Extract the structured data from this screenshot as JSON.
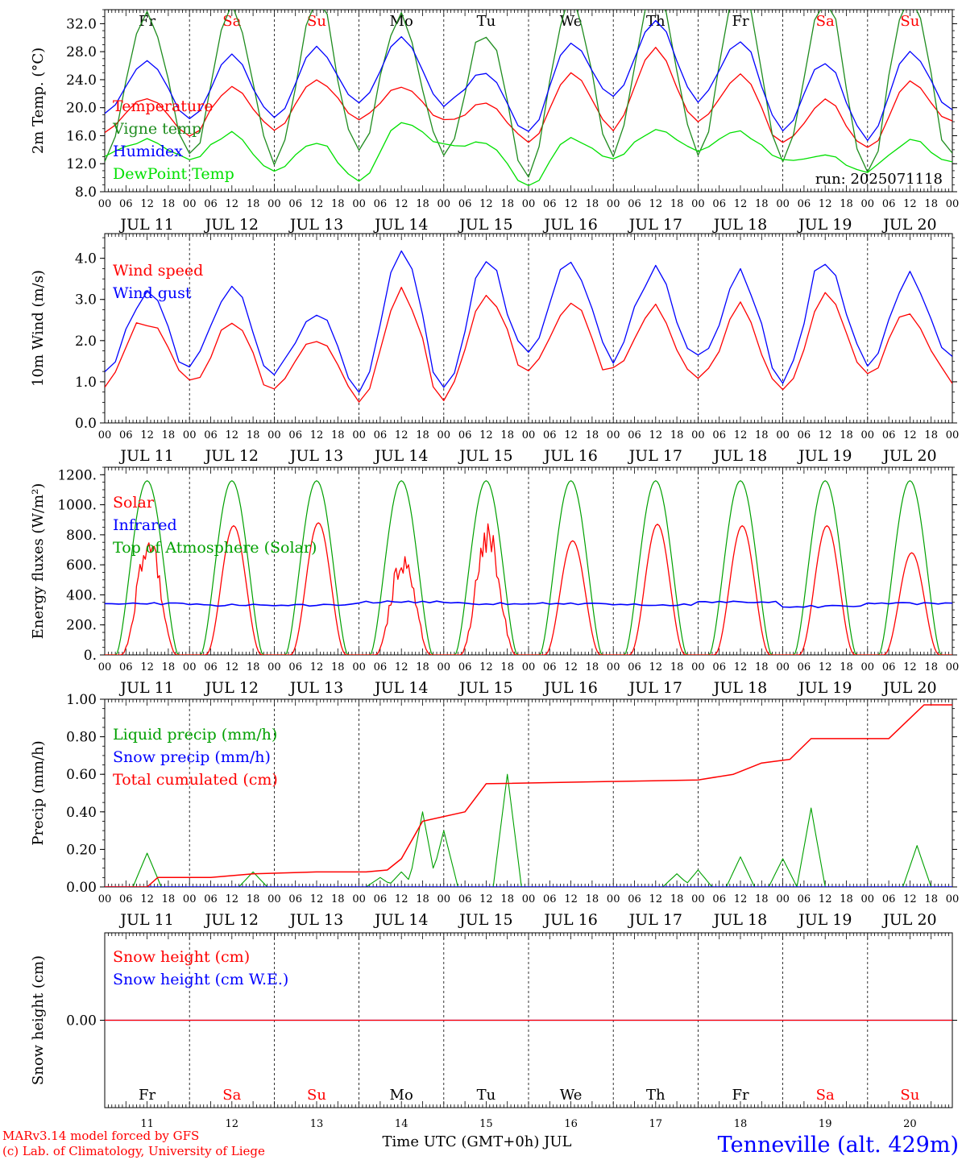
{
  "colors": {
    "red": "#ff0000",
    "green": "#00a000",
    "dark_green": "#1e8c1e",
    "blue": "#0000ff",
    "light_green": "#00e000",
    "axis": "#000000"
  },
  "days": [
    {
      "dow": "Fr",
      "weekend": false,
      "month_label": "JUL 11",
      "num": "11"
    },
    {
      "dow": "Sa",
      "weekend": true,
      "month_label": "JUL 12",
      "num": "12"
    },
    {
      "dow": "Su",
      "weekend": true,
      "month_label": "JUL 13",
      "num": "13"
    },
    {
      "dow": "Mo",
      "weekend": false,
      "month_label": "JUL 14",
      "num": "14"
    },
    {
      "dow": "Tu",
      "weekend": false,
      "month_label": "JUL 15",
      "num": "15"
    },
    {
      "dow": "We",
      "weekend": false,
      "month_label": "JUL 16",
      "num": "16"
    },
    {
      "dow": "Th",
      "weekend": false,
      "month_label": "JUL 17",
      "num": "17"
    },
    {
      "dow": "Fr",
      "weekend": false,
      "month_label": "JUL 18",
      "num": "18"
    },
    {
      "dow": "Sa",
      "weekend": true,
      "month_label": "JUL 19",
      "num": "19"
    },
    {
      "dow": "Su",
      "weekend": true,
      "month_label": "JUL 20",
      "num": "20"
    }
  ],
  "hour_ticks": [
    "00",
    "06",
    "12",
    "18"
  ],
  "footer": {
    "model": "MARv3.14 model forced by GFS",
    "credit": "(c) Lab. of Climatology, University of Liege",
    "xlabel": "Time UTC (GMT+0h) JUL",
    "station": "Tenneville (alt. 429m)"
  },
  "chart_data": [
    {
      "type": "line",
      "ylabel": "2m Temp. (°C)",
      "ylim": [
        8,
        34
      ],
      "yticks": [
        "8.0",
        "12.0",
        "16.0",
        "20.0",
        "24.0",
        "28.0",
        "32.0"
      ],
      "run_label": "run: 2025071118",
      "x_hours": [
        0,
        12,
        24,
        36,
        48,
        60,
        72,
        84,
        96,
        108,
        120,
        132,
        144,
        156,
        168,
        180,
        192,
        204,
        216,
        228,
        240
      ],
      "series": [
        {
          "name": "Temperature",
          "color": "red",
          "values": [
            16.8,
            21.5,
            16.2,
            22.7,
            17.0,
            24.2,
            18.5,
            23.2,
            18.0,
            20.5,
            15.2,
            24.8,
            17.0,
            28.3,
            18.0,
            24.5,
            15.0,
            21.0,
            14.0,
            23.6,
            18.0
          ]
        },
        {
          "name": "Vigne temp",
          "color": "dark_green",
          "values": [
            13.0,
            33.5,
            12.5,
            34.5,
            12.0,
            35.5,
            14.0,
            33.0,
            13.5,
            31.0,
            10.5,
            36.0,
            14.0,
            38.0,
            14.0,
            37.0,
            12.0,
            36.0,
            11.0,
            36.0,
            12.5
          ]
        },
        {
          "name": "Humidex",
          "color": "blue",
          "values": [
            19.5,
            26.5,
            18.5,
            27.5,
            18.5,
            28.5,
            20.5,
            29.8,
            20.5,
            25.0,
            16.5,
            29.5,
            21.5,
            32.5,
            21.0,
            29.5,
            17.0,
            26.5,
            15.5,
            28.0,
            19.5
          ]
        },
        {
          "name": "DewPoint Temp",
          "color": "light_green",
          "values": [
            13.2,
            15.5,
            12.8,
            16.3,
            11.0,
            15.0,
            9.5,
            18.0,
            14.5,
            15.0,
            9.0,
            15.5,
            12.5,
            17.0,
            14.0,
            16.5,
            12.5,
            13.0,
            11.0,
            15.2,
            12.5
          ]
        }
      ]
    },
    {
      "type": "line",
      "ylabel": "10m Wind (m/s)",
      "ylim": [
        0,
        4.6
      ],
      "yticks": [
        "0.0",
        "1.0",
        "2.0",
        "3.0",
        "4.0"
      ],
      "x_hours": [
        0,
        12,
        24,
        36,
        48,
        60,
        72,
        84,
        96,
        108,
        120,
        132,
        144,
        156,
        168,
        180,
        192,
        204,
        216,
        228,
        240
      ],
      "series": [
        {
          "name": "Wind speed",
          "color": "red",
          "values": [
            1.0,
            2.5,
            1.0,
            2.5,
            0.8,
            2.0,
            0.5,
            3.3,
            0.5,
            3.0,
            1.2,
            2.8,
            1.2,
            2.8,
            1.0,
            2.8,
            0.8,
            3.1,
            1.1,
            2.7,
            1.1
          ]
        },
        {
          "name": "Wind gust",
          "color": "blue",
          "values": [
            1.3,
            3.2,
            1.3,
            3.3,
            1.2,
            2.7,
            0.8,
            4.3,
            0.7,
            3.9,
            1.6,
            3.9,
            1.6,
            3.7,
            1.5,
            3.6,
            1.0,
            4.0,
            1.4,
            3.6,
            1.5
          ]
        }
      ]
    },
    {
      "type": "line",
      "ylabel": "Energy fluxes (W/m²)",
      "ylim": [
        0,
        1250
      ],
      "yticks": [
        "0.",
        "200.",
        "400.",
        "600.",
        "800.",
        "1000.",
        "1200."
      ],
      "series": [
        {
          "name": "Solar",
          "color": "red",
          "daily_peak": [
            820,
            860,
            880,
            720,
            880,
            760,
            870,
            860,
            860,
            680
          ]
        },
        {
          "name": "Infrared",
          "color": "blue",
          "daily_mean": [
            350,
            340,
            340,
            360,
            350,
            350,
            340,
            360,
            330,
            350
          ]
        },
        {
          "name": "Top of Atmosphere (Solar)",
          "color": "green",
          "daily_peak": [
            1160,
            1160,
            1160,
            1160,
            1160,
            1160,
            1160,
            1160,
            1160,
            1160
          ]
        }
      ]
    },
    {
      "type": "line",
      "ylabel": "Precip (mm/h)",
      "ylim": [
        0,
        1.0
      ],
      "yticks": [
        "0.00",
        "0.20",
        "0.40",
        "0.60",
        "0.80",
        "1.00"
      ],
      "series": [
        {
          "name": "Liquid precip (mm/h)",
          "color": "green",
          "points": [
            [
              12,
              0.18
            ],
            [
              42,
              0.08
            ],
            [
              78,
              0.05
            ],
            [
              84,
              0.08
            ],
            [
              90,
              0.4
            ],
            [
              96,
              0.3
            ],
            [
              114,
              0.6
            ],
            [
              162,
              0.07
            ],
            [
              168,
              0.09
            ],
            [
              180,
              0.16
            ],
            [
              192,
              0.15
            ],
            [
              200,
              0.42
            ],
            [
              230,
              0.22
            ]
          ]
        },
        {
          "name": "Snow precip (mm/h)",
          "color": "blue",
          "values": [
            0
          ]
        },
        {
          "name": "Total cumulated (cm)",
          "color": "red",
          "points": [
            [
              0,
              0.0
            ],
            [
              12,
              0.0
            ],
            [
              15,
              0.05
            ],
            [
              30,
              0.05
            ],
            [
              42,
              0.07
            ],
            [
              60,
              0.08
            ],
            [
              74,
              0.08
            ],
            [
              80,
              0.09
            ],
            [
              84,
              0.15
            ],
            [
              90,
              0.35
            ],
            [
              102,
              0.4
            ],
            [
              108,
              0.55
            ],
            [
              168,
              0.57
            ],
            [
              178,
              0.6
            ],
            [
              186,
              0.66
            ],
            [
              194,
              0.68
            ],
            [
              200,
              0.79
            ],
            [
              222,
              0.79
            ],
            [
              232,
              0.97
            ],
            [
              240,
              0.97
            ]
          ]
        }
      ]
    },
    {
      "type": "line",
      "ylabel": "Snow height (cm)",
      "ylim": [
        -1,
        1
      ],
      "yticks": [
        "0.00"
      ],
      "series": [
        {
          "name": "Snow height (cm)",
          "color": "red",
          "values": [
            0,
            0
          ]
        },
        {
          "name": "Snow height (cm W.E.)",
          "color": "blue",
          "values": [
            0,
            0
          ]
        }
      ]
    }
  ]
}
